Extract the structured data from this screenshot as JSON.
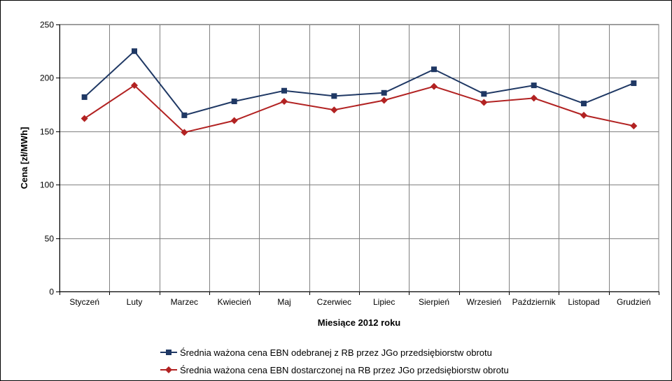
{
  "chart_data": {
    "type": "line",
    "xlabel": "Miesiące 2012 roku",
    "ylabel": "Cena [zł/MWh]",
    "ylim": [
      0,
      250
    ],
    "yticks": [
      0,
      50,
      100,
      150,
      200,
      250
    ],
    "grid": true,
    "legend_position": "bottom",
    "categories": [
      "Styczeń",
      "Luty",
      "Marzec",
      "Kwiecień",
      "Maj",
      "Czerwiec",
      "Lipiec",
      "Sierpień",
      "Wrzesień",
      "Październik",
      "Listopad",
      "Grudzień"
    ],
    "series": [
      {
        "name": "Średnia ważona cena EBN odebranej z RB przez JGo przedsiębiorstw obrotu",
        "color": "#1f3864",
        "marker": "square",
        "values": [
          182,
          225,
          165,
          178,
          188,
          183,
          186,
          208,
          185,
          193,
          176,
          195
        ]
      },
      {
        "name": "Średnia ważona cena EBN dostarczonej na RB przez JGo przedsiębiorstw obrotu",
        "color": "#b22222",
        "marker": "diamond",
        "values": [
          162,
          193,
          149,
          160,
          178,
          170,
          179,
          192,
          177,
          181,
          165,
          155
        ]
      }
    ]
  }
}
